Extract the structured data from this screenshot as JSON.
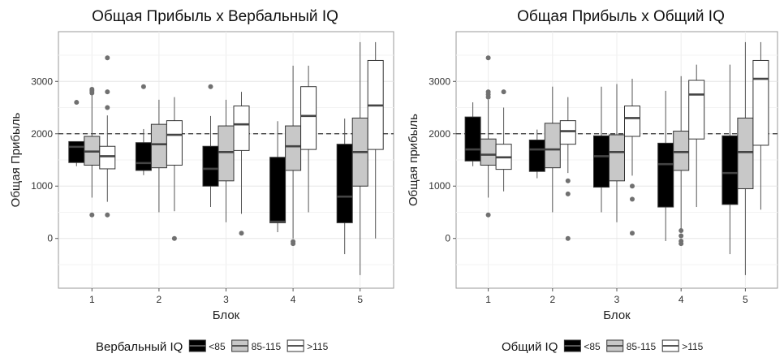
{
  "colors": {
    "low": "#000000",
    "mid": "#c8c8c8",
    "high": "#ffffff",
    "outlier": "#707070",
    "reference_line": "#333333"
  },
  "chart_data": [
    {
      "type": "boxplot",
      "title": "Общая Прибыль х Вербальный IQ",
      "xlabel": "Блок",
      "ylabel": "Общая Прибыль",
      "categories": [
        "1",
        "2",
        "3",
        "4",
        "5"
      ],
      "yticks": [
        0,
        1000,
        2000,
        3000
      ],
      "ylim": [
        -950,
        3950
      ],
      "reference_line": 2000,
      "grid": true,
      "legend": {
        "title": "Вербальный IQ",
        "placement": "bottom",
        "items": [
          "<85",
          "85-115",
          ">115"
        ]
      },
      "series": [
        {
          "name": "<85",
          "color_key": "low",
          "boxes": [
            {
              "whisker_low": 1380,
              "q1": 1450,
              "median": 1750,
              "q3": 1850,
              "whisker_high": 1850,
              "outliers": [
                2600
              ]
            },
            {
              "whisker_low": 1210,
              "q1": 1300,
              "median": 1440,
              "q3": 1830,
              "whisker_high": 2090,
              "outliers": [
                2900
              ]
            },
            {
              "whisker_low": 600,
              "q1": 1000,
              "median": 1330,
              "q3": 1760,
              "whisker_high": 2340,
              "outliers": [
                2900
              ]
            },
            {
              "whisker_low": 120,
              "q1": 300,
              "median": 320,
              "q3": 1550,
              "whisker_high": 2240,
              "outliers": []
            },
            {
              "whisker_low": -300,
              "q1": 300,
              "median": 800,
              "q3": 1800,
              "whisker_high": 2290,
              "outliers": []
            }
          ]
        },
        {
          "name": "85-115",
          "color_key": "mid",
          "boxes": [
            {
              "whisker_low": 780,
              "q1": 1400,
              "median": 1660,
              "q3": 1950,
              "whisker_high": 2850,
              "outliers": [
                450,
                2820,
                2850,
                2780
              ]
            },
            {
              "whisker_low": 500,
              "q1": 1350,
              "median": 1800,
              "q3": 2180,
              "whisker_high": 2650,
              "outliers": []
            },
            {
              "whisker_low": 310,
              "q1": 1100,
              "median": 1650,
              "q3": 2150,
              "whisker_high": 2650,
              "outliers": []
            },
            {
              "whisker_low": 0,
              "q1": 1300,
              "median": 1760,
              "q3": 2150,
              "whisker_high": 3300,
              "outliers": [
                -60,
                -100
              ]
            },
            {
              "whisker_low": -700,
              "q1": 1000,
              "median": 1650,
              "q3": 2300,
              "whisker_high": 3750,
              "outliers": []
            }
          ]
        },
        {
          "name": ">115",
          "color_key": "high",
          "boxes": [
            {
              "whisker_low": 700,
              "q1": 1330,
              "median": 1570,
              "q3": 1760,
              "whisker_high": 2350,
              "outliers": [
                450,
                2500,
                2800,
                3450
              ]
            },
            {
              "whisker_low": 520,
              "q1": 1400,
              "median": 1980,
              "q3": 2250,
              "whisker_high": 2700,
              "outliers": [
                0
              ]
            },
            {
              "whisker_low": 470,
              "q1": 1680,
              "median": 2180,
              "q3": 2530,
              "whisker_high": 2800,
              "outliers": [
                100
              ]
            },
            {
              "whisker_low": 500,
              "q1": 1700,
              "median": 2340,
              "q3": 2900,
              "whisker_high": 3300,
              "outliers": []
            },
            {
              "whisker_low": 0,
              "q1": 1700,
              "median": 2540,
              "q3": 3400,
              "whisker_high": 3750,
              "outliers": []
            }
          ]
        }
      ]
    },
    {
      "type": "boxplot",
      "title": "Общая Прибыль х Общий IQ",
      "xlabel": "Блок",
      "ylabel": "Общая прибыль",
      "categories": [
        "1",
        "2",
        "3",
        "4",
        "5"
      ],
      "yticks": [
        0,
        1000,
        2000,
        3000
      ],
      "ylim": [
        -950,
        3950
      ],
      "reference_line": 2000,
      "grid": true,
      "legend": {
        "title": "Общий IQ",
        "placement": "bottom",
        "items": [
          "<85",
          "85-115",
          ">115"
        ]
      },
      "series": [
        {
          "name": "<85",
          "color_key": "low",
          "boxes": [
            {
              "whisker_low": 1380,
              "q1": 1480,
              "median": 1700,
              "q3": 2320,
              "whisker_high": 2600,
              "outliers": []
            },
            {
              "whisker_low": 1150,
              "q1": 1280,
              "median": 1700,
              "q3": 1880,
              "whisker_high": 2080,
              "outliers": []
            },
            {
              "whisker_low": 500,
              "q1": 980,
              "median": 1570,
              "q3": 1960,
              "whisker_high": 2900,
              "outliers": []
            },
            {
              "whisker_low": -50,
              "q1": 600,
              "median": 1420,
              "q3": 1820,
              "whisker_high": 2820,
              "outliers": []
            },
            {
              "whisker_low": -300,
              "q1": 650,
              "median": 1250,
              "q3": 1960,
              "whisker_high": 3320,
              "outliers": []
            }
          ]
        },
        {
          "name": "85-115",
          "color_key": "mid",
          "boxes": [
            {
              "whisker_low": 780,
              "q1": 1400,
              "median": 1600,
              "q3": 1900,
              "whisker_high": 2650,
              "outliers": [
                450,
                2700,
                2750,
                2800,
                3450
              ]
            },
            {
              "whisker_low": 500,
              "q1": 1350,
              "median": 1700,
              "q3": 2200,
              "whisker_high": 2900,
              "outliers": []
            },
            {
              "whisker_low": 310,
              "q1": 1100,
              "median": 1650,
              "q3": 1980,
              "whisker_high": 2950,
              "outliers": []
            },
            {
              "whisker_low": 150,
              "q1": 1300,
              "median": 1650,
              "q3": 2050,
              "whisker_high": 3100,
              "outliers": [
                150,
                50,
                -50,
                -100
              ]
            },
            {
              "whisker_low": -700,
              "q1": 950,
              "median": 1650,
              "q3": 2300,
              "whisker_high": 3750,
              "outliers": []
            }
          ]
        },
        {
          "name": ">115",
          "color_key": "high",
          "boxes": [
            {
              "whisker_low": 900,
              "q1": 1320,
              "median": 1550,
              "q3": 1800,
              "whisker_high": 2500,
              "outliers": [
                2800
              ]
            },
            {
              "whisker_low": 1250,
              "q1": 1800,
              "median": 2050,
              "q3": 2250,
              "whisker_high": 2700,
              "outliers": [
                1100,
                850,
                0
              ]
            },
            {
              "whisker_low": 1200,
              "q1": 1950,
              "median": 2300,
              "q3": 2530,
              "whisker_high": 3050,
              "outliers": [
                1000,
                750,
                100
              ]
            },
            {
              "whisker_low": 600,
              "q1": 1900,
              "median": 2750,
              "q3": 3020,
              "whisker_high": 3320,
              "outliers": []
            },
            {
              "whisker_low": 550,
              "q1": 1780,
              "median": 3050,
              "q3": 3400,
              "whisker_high": 3750,
              "outliers": []
            }
          ]
        }
      ]
    }
  ]
}
